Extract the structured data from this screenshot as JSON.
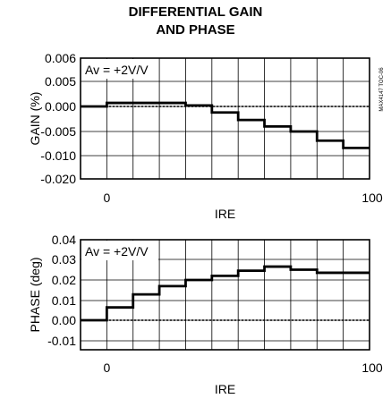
{
  "title": [
    "DIFFERENTIAL GAIN",
    "AND PHASE"
  ],
  "side_note": "MAX4147 TOC-06",
  "chart_data": [
    {
      "type": "line",
      "step": true,
      "ylabel": "GAIN (%)",
      "xlabel": "IRE",
      "annotation": "Av = +2V/V",
      "xlim": [
        -10,
        100
      ],
      "xticks_labeled": [
        "0",
        "100"
      ],
      "grid": true,
      "y_tick_labels": [
        "0.006",
        "0.005",
        "0.000",
        "-0.005",
        "-0.010",
        "-0.020"
      ],
      "y_tick_values": [
        0.006,
        0.005,
        0.0,
        -0.005,
        -0.01,
        -0.02
      ],
      "reference_line": 0.0,
      "series": [
        {
          "x": [
            -10,
            0,
            10,
            20,
            30,
            40,
            50,
            60,
            70,
            80,
            90,
            100
          ],
          "y": [
            0.0,
            0.0,
            0.0007,
            0.0007,
            0.0007,
            0.0002,
            -0.0012,
            -0.0027,
            -0.004,
            -0.005,
            -0.0069,
            -0.0084
          ]
        }
      ]
    },
    {
      "type": "line",
      "step": true,
      "ylabel": "PHASE (deg)",
      "xlabel": "IRE",
      "annotation": "Av = +2V/V",
      "xlim": [
        -10,
        100
      ],
      "xticks_labeled": [
        "0",
        "100"
      ],
      "grid": true,
      "y_tick_labels": [
        "0.04",
        "0.03",
        "0.02",
        "0.01",
        "0.00",
        "-0.01"
      ],
      "y_tick_values": [
        0.04,
        0.03,
        0.02,
        0.01,
        0.0,
        -0.01
      ],
      "reference_line": 0.0,
      "series": [
        {
          "x": [
            -10,
            0,
            10,
            20,
            30,
            40,
            50,
            60,
            70,
            80,
            90,
            100
          ],
          "y": [
            0.0,
            0.0,
            0.0065,
            0.013,
            0.017,
            0.02,
            0.022,
            0.0245,
            0.0265,
            0.025,
            0.0235,
            0.0235
          ]
        }
      ]
    }
  ]
}
